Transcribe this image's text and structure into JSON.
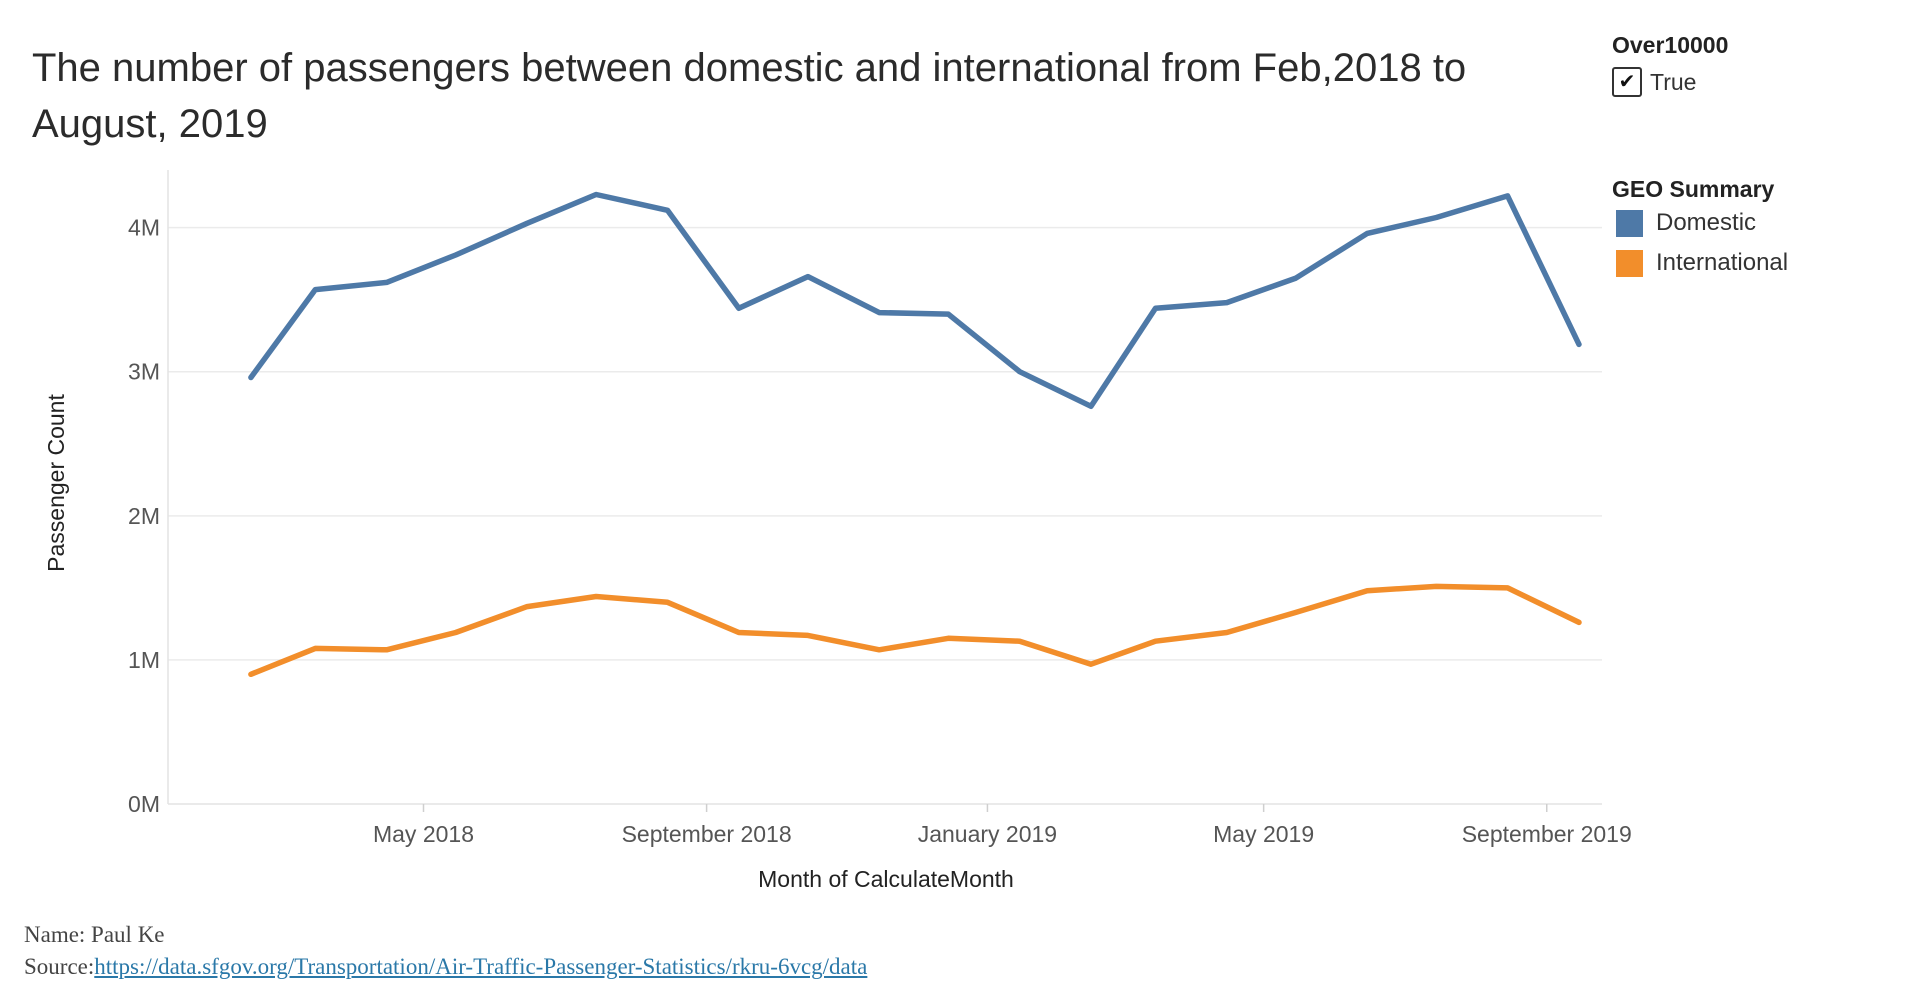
{
  "title": "The number of passengers between domestic and international from Feb,2018 to August, 2019",
  "filter": {
    "title": "Over10000",
    "checked": true,
    "check_glyph": "✔",
    "option_label": "True"
  },
  "legend": {
    "title": "GEO Summary",
    "items": [
      {
        "label": "Domestic",
        "color": "#4e79a7"
      },
      {
        "label": "International",
        "color": "#f28e2b"
      }
    ]
  },
  "footer": {
    "name": "Name: Paul Ke",
    "source_prefix": "Source:",
    "source_link": "https://data.sfgov.org/Transportation/Air-Traffic-Passenger-Statistics/rkru-6vcg/data"
  },
  "chart_data": {
    "type": "line",
    "xlabel": "Month of CalculateMonth",
    "ylabel": "Passenger Count",
    "x": [
      "2018-02",
      "2018-03",
      "2018-04",
      "2018-05",
      "2018-06",
      "2018-07",
      "2018-08",
      "2018-09",
      "2018-10",
      "2018-11",
      "2018-12",
      "2019-01",
      "2019-02",
      "2019-03",
      "2019-04",
      "2019-05",
      "2019-06",
      "2019-07",
      "2019-08",
      "2019-09"
    ],
    "x_ticks": [
      {
        "date": "2018-05",
        "label": "May 2018"
      },
      {
        "date": "2018-09",
        "label": "September 2018"
      },
      {
        "date": "2019-01",
        "label": "January 2019"
      },
      {
        "date": "2019-05",
        "label": "May 2019"
      },
      {
        "date": "2019-09",
        "label": "September 2019"
      }
    ],
    "y_ticks": [
      {
        "value": 0,
        "label": "0M"
      },
      {
        "value": 1000000,
        "label": "1M"
      },
      {
        "value": 2000000,
        "label": "2M"
      },
      {
        "value": 3000000,
        "label": "3M"
      },
      {
        "value": 4000000,
        "label": "4M"
      }
    ],
    "ylim": [
      0,
      4400000
    ],
    "xlim": [
      "2018-01-10",
      "2019-09-25"
    ],
    "grid": "horizontal",
    "legend_position": "right",
    "series": [
      {
        "name": "Domestic",
        "color": "#4e79a7",
        "points": [
          {
            "x": "2018-02-15",
            "y": 2960000
          },
          {
            "x": "2018-03-15",
            "y": 3570000
          },
          {
            "x": "2018-04-15",
            "y": 3620000
          },
          {
            "x": "2018-05-15",
            "y": 3810000
          },
          {
            "x": "2018-06-15",
            "y": 4030000
          },
          {
            "x": "2018-07-15",
            "y": 4230000
          },
          {
            "x": "2018-08-15",
            "y": 4120000
          },
          {
            "x": "2018-09-15",
            "y": 3440000
          },
          {
            "x": "2018-10-15",
            "y": 3660000
          },
          {
            "x": "2018-11-15",
            "y": 3410000
          },
          {
            "x": "2018-12-15",
            "y": 3400000
          },
          {
            "x": "2019-01-15",
            "y": 3000000
          },
          {
            "x": "2019-02-15",
            "y": 2760000
          },
          {
            "x": "2019-03-15",
            "y": 3440000
          },
          {
            "x": "2019-04-15",
            "y": 3480000
          },
          {
            "x": "2019-05-15",
            "y": 3650000
          },
          {
            "x": "2019-06-15",
            "y": 3960000
          },
          {
            "x": "2019-07-15",
            "y": 4070000
          },
          {
            "x": "2019-08-15",
            "y": 4220000
          },
          {
            "x": "2019-09-15",
            "y": 3190000
          }
        ]
      },
      {
        "name": "International",
        "color": "#f28e2b",
        "points": [
          {
            "x": "2018-02-15",
            "y": 900000
          },
          {
            "x": "2018-03-15",
            "y": 1080000
          },
          {
            "x": "2018-04-15",
            "y": 1070000
          },
          {
            "x": "2018-05-15",
            "y": 1190000
          },
          {
            "x": "2018-06-15",
            "y": 1370000
          },
          {
            "x": "2018-07-15",
            "y": 1440000
          },
          {
            "x": "2018-08-15",
            "y": 1400000
          },
          {
            "x": "2018-09-15",
            "y": 1190000
          },
          {
            "x": "2018-10-15",
            "y": 1170000
          },
          {
            "x": "2018-11-15",
            "y": 1070000
          },
          {
            "x": "2018-12-15",
            "y": 1150000
          },
          {
            "x": "2019-01-15",
            "y": 1130000
          },
          {
            "x": "2019-02-15",
            "y": 970000
          },
          {
            "x": "2019-03-15",
            "y": 1130000
          },
          {
            "x": "2019-04-15",
            "y": 1190000
          },
          {
            "x": "2019-05-15",
            "y": 1330000
          },
          {
            "x": "2019-06-15",
            "y": 1480000
          },
          {
            "x": "2019-07-15",
            "y": 1510000
          },
          {
            "x": "2019-08-15",
            "y": 1500000
          },
          {
            "x": "2019-09-15",
            "y": 1260000
          }
        ]
      }
    ]
  }
}
